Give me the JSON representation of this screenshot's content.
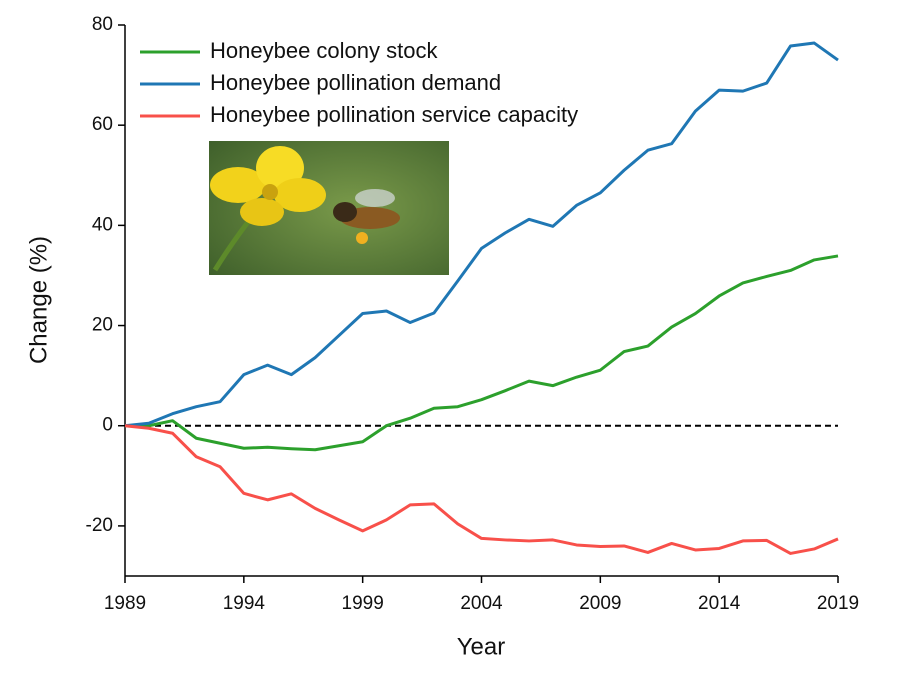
{
  "chart_data": {
    "type": "line",
    "x_label": "Year",
    "y_label": "Change (%)",
    "x": [
      1989,
      1990,
      1991,
      1992,
      1993,
      1994,
      1995,
      1996,
      1997,
      1998,
      1999,
      2000,
      2001,
      2002,
      2003,
      2004,
      2005,
      2006,
      2007,
      2008,
      2009,
      2010,
      2011,
      2012,
      2013,
      2014,
      2015,
      2016,
      2017,
      2018,
      2019
    ],
    "series": [
      {
        "name": "Honeybee colony stock",
        "color": "#2ca02c",
        "values": [
          0,
          0,
          1,
          -2.5,
          -3.5,
          -4.5,
          -4.3,
          -4.6,
          -4.8,
          -4,
          -3.2,
          0,
          1.5,
          3.5,
          3.8,
          5.2,
          7,
          8.9,
          8,
          9.7,
          11.1,
          14.8,
          15.9,
          19.7,
          22.4,
          25.9,
          28.5,
          29.8,
          31,
          33.1,
          33.9
        ]
      },
      {
        "name": "Honeybee pollination demand",
        "color": "#1f77b4",
        "values": [
          0,
          0.5,
          2.4,
          3.8,
          4.8,
          10.2,
          12.1,
          10.2,
          13.6,
          18,
          22.4,
          22.9,
          20.6,
          22.5,
          28.9,
          35.4,
          38.5,
          41.2,
          39.8,
          44,
          46.5,
          51,
          55,
          56.3,
          62.8,
          67,
          66.8,
          68.4,
          75.8,
          76.4,
          73
        ]
      },
      {
        "name": "Honeybee pollination service capacity",
        "color": "#f8504a",
        "values": [
          0,
          -0.5,
          -1.5,
          -6.2,
          -8.2,
          -13.5,
          -14.8,
          -13.6,
          -16.5,
          -18.8,
          -21,
          -18.8,
          -15.8,
          -15.6,
          -19.6,
          -22.5,
          -22.8,
          -23,
          -22.8,
          -23.8,
          -24.1,
          -24,
          -25.3,
          -23.5,
          -24.8,
          -24.5,
          -23,
          -22.9,
          -25.5,
          -24.6,
          -22.6
        ]
      }
    ],
    "xlim": [
      1989,
      2019
    ],
    "xticks": [
      1989,
      1994,
      1999,
      2004,
      2009,
      2014,
      2019
    ],
    "ylim": [
      -30,
      80
    ],
    "yticks": [
      -20,
      0,
      20,
      40,
      60,
      80
    ],
    "reference_line": 0,
    "legend": "top-left"
  }
}
